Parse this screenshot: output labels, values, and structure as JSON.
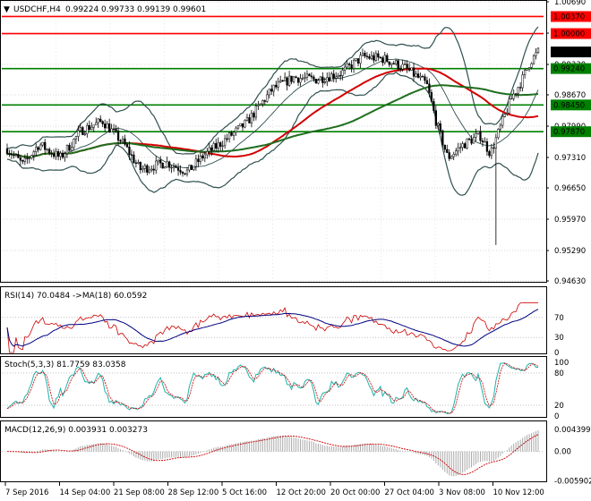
{
  "header": {
    "symbol": "USDCHF,H4",
    "open": "0.99224",
    "high": "0.99733",
    "low": "0.99139",
    "close": "0.99601"
  },
  "main_axis": {
    "ticks": [
      "1.00690",
      "1.00010",
      "0.99330",
      "0.98670",
      "0.97990",
      "0.97310",
      "0.96650",
      "0.95970",
      "0.95290",
      "0.94630"
    ],
    "tick_values": [
      1.0069,
      1.0001,
      0.9933,
      0.9867,
      0.9799,
      0.9731,
      0.9665,
      0.9597,
      0.9529,
      0.9463
    ],
    "range": [
      0.9463,
      1.0069
    ]
  },
  "levels": [
    {
      "label": "1.00370",
      "value": 1.0037,
      "color": "#ff0000",
      "kind": "resistance"
    },
    {
      "label": "1.00000",
      "value": 1.0,
      "color": "#ff0000",
      "kind": "resistance"
    },
    {
      "label": "0.99601",
      "value": 0.99601,
      "color": "#000000",
      "kind": "current"
    },
    {
      "label": "0.99240",
      "value": 0.9924,
      "color": "#008000",
      "kind": "support"
    },
    {
      "label": "0.98450",
      "value": 0.9845,
      "color": "#008000",
      "kind": "support"
    },
    {
      "label": "0.97870",
      "value": 0.9787,
      "color": "#008000",
      "kind": "support"
    }
  ],
  "rsi": {
    "label": "RSI(14) 70.0484 ->MA(18) 60.0592",
    "ticks": [
      "70",
      "30",
      "0"
    ],
    "tick_values": [
      70,
      30,
      0
    ]
  },
  "stoch": {
    "label": "Stoch(5,3,3) 81.7759 83.0358",
    "ticks": [
      "100",
      "80",
      "20",
      "0"
    ],
    "tick_values": [
      100,
      80,
      20,
      0
    ]
  },
  "macd": {
    "label": "MACD(12,26,9) 0.003931 0.003273",
    "ticks": [
      "0.004399",
      "0.00",
      "-0.005902"
    ],
    "tick_values": [
      0.004399,
      0,
      -0.005902
    ]
  },
  "x_axis": {
    "labels": [
      "7 Sep 2016",
      "14 Sep 04:00",
      "21 Sep 08:00",
      "28 Sep 12:00",
      "5 Oct 16:00",
      "12 Oct 20:00",
      "20 Oct 00:00",
      "27 Oct 04:00",
      "3 Nov 08:00",
      "10 Nov 12:00"
    ]
  },
  "colors": {
    "candle": "#000000",
    "bollinger": "#2f4f4f",
    "ma_red": "#d40000",
    "ma_green": "#1e6e1e",
    "rsi_line": "#000080",
    "rsi_ma": "#cc0000",
    "stoch_main": "#20b2aa",
    "stoch_signal": "#cc0000",
    "macd_hist": "#a9a9a9",
    "macd_signal": "#cc0000"
  },
  "chart_data": {
    "type": "line",
    "title": "USDCHF,H4",
    "ylim": [
      0.9463,
      1.0069
    ],
    "x": [
      "7 Sep 2016",
      "14 Sep 04:00",
      "21 Sep 08:00",
      "28 Sep 12:00",
      "5 Oct 16:00",
      "12 Oct 20:00",
      "20 Oct 00:00",
      "27 Oct 04:00",
      "3 Nov 08:00",
      "10 Nov 12:00"
    ],
    "series": [
      {
        "name": "close",
        "values": [
          0.9745,
          0.979,
          0.97,
          0.969,
          0.979,
          0.9905,
          0.995,
          0.987,
          0.976,
          0.996
        ]
      }
    ]
  }
}
